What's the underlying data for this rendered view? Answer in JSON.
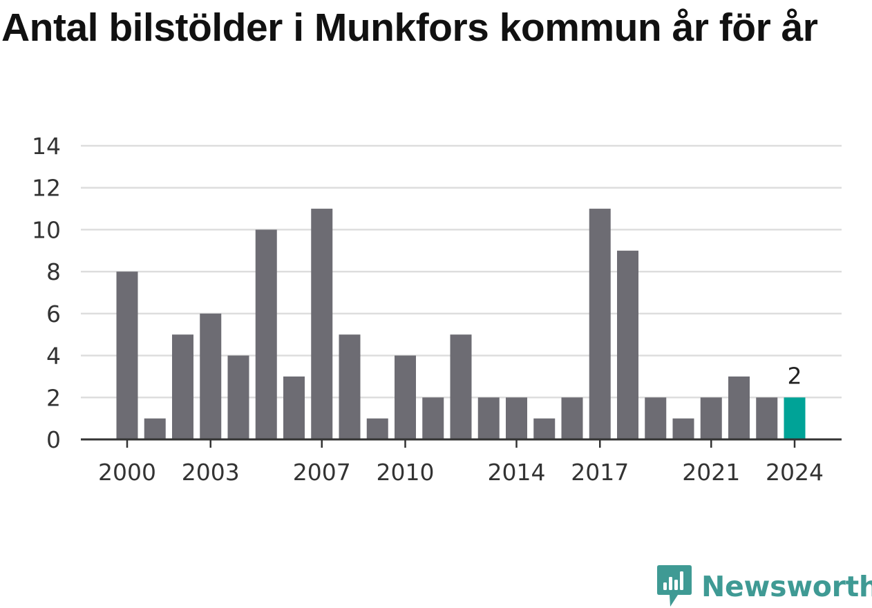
{
  "chart_data": {
    "type": "bar",
    "title": "Antal bilstölder i Munkfors kommun år för år",
    "x": [
      2000,
      2001,
      2002,
      2003,
      2004,
      2005,
      2006,
      2007,
      2008,
      2009,
      2010,
      2011,
      2012,
      2013,
      2014,
      2015,
      2016,
      2017,
      2018,
      2019,
      2020,
      2021,
      2022,
      2023,
      2024
    ],
    "values": [
      8,
      1,
      5,
      6,
      4,
      10,
      3,
      11,
      5,
      1,
      4,
      2,
      5,
      2,
      2,
      1,
      2,
      11,
      9,
      2,
      1,
      2,
      3,
      2,
      2
    ],
    "x_tick_labels": [
      "2000",
      "2003",
      "2007",
      "2010",
      "2014",
      "2017",
      "2021",
      "2024"
    ],
    "y_ticks": [
      0,
      2,
      4,
      6,
      8,
      10,
      12,
      14
    ],
    "ylim": [
      0,
      14
    ],
    "grid": true,
    "colors": {
      "bar": "#6d6c73",
      "highlight": "#00a397",
      "grid": "#dddddd",
      "axis": "#333333"
    },
    "annotations": [
      {
        "x": 2024,
        "label": "2"
      }
    ]
  },
  "brand": {
    "name": "Newsworthy",
    "icon": "newsworthy-logo-icon",
    "color": "#3f9a94"
  }
}
